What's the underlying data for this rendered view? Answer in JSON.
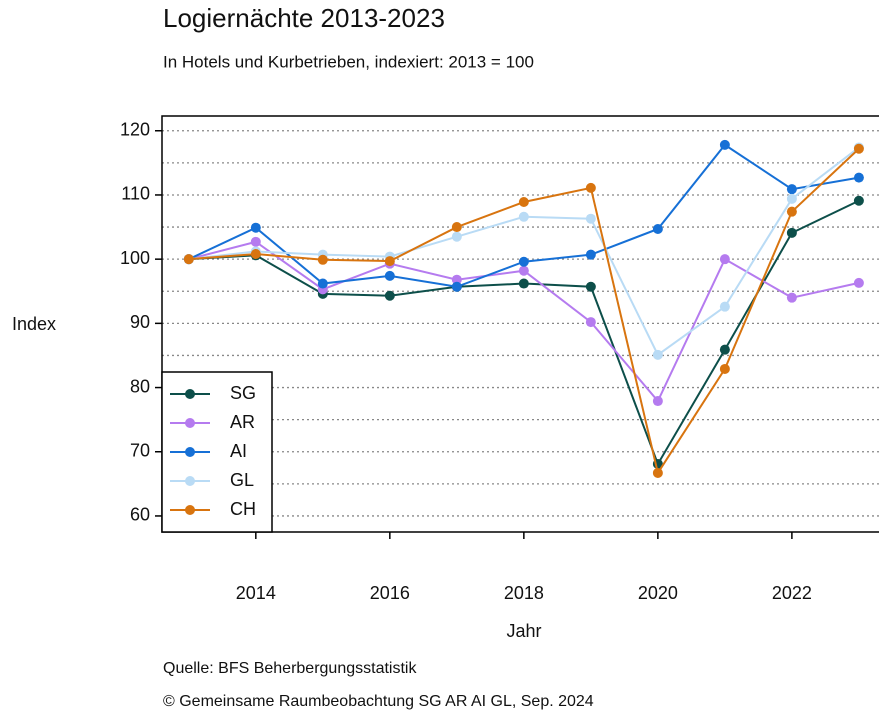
{
  "chart_data": {
    "type": "line",
    "title": "Logiernächte 2013-2023",
    "subtitle": "In Hotels und Kurbetrieben, indexiert:  2013 = 100",
    "x_label": "Jahr",
    "y_label": "Index",
    "x": [
      2013,
      2014,
      2015,
      2016,
      2017,
      2018,
      2019,
      2020,
      2021,
      2022,
      2023
    ],
    "series": [
      {
        "name": "SG",
        "color": "#0d4f4a",
        "values": [
          100,
          100.6,
          94.6,
          94.3,
          95.7,
          96.2,
          95.7,
          68.1,
          85.9,
          104.1,
          109.1
        ]
      },
      {
        "name": "AR",
        "color": "#b57bef",
        "values": [
          100,
          102.7,
          95.3,
          99.3,
          96.8,
          98.2,
          90.2,
          77.9,
          100,
          94.0,
          96.3
        ]
      },
      {
        "name": "AI",
        "color": "#1670d6",
        "values": [
          100,
          104.9,
          96.2,
          97.4,
          95.7,
          99.6,
          100.7,
          104.7,
          117.8,
          110.9,
          112.7
        ]
      },
      {
        "name": "GL",
        "color": "#b9dbf5",
        "values": [
          100,
          101.2,
          100.7,
          100.4,
          103.5,
          106.6,
          106.3,
          85.1,
          92.6,
          109.4,
          117.4
        ]
      },
      {
        "name": "CH",
        "color": "#d8740f",
        "values": [
          100,
          100.8,
          99.9,
          99.7,
          105.0,
          108.9,
          111.1,
          66.7,
          82.9,
          107.4,
          117.2
        ]
      }
    ],
    "xlim": [
      2012.6,
      2023.3
    ],
    "ylim": [
      57.5,
      122.3
    ],
    "xticks": [
      2014,
      2016,
      2018,
      2020,
      2022
    ],
    "yticks": [
      60,
      70,
      80,
      90,
      100,
      110,
      120
    ],
    "grid_lines": [
      60,
      65,
      70,
      75,
      80,
      85,
      90,
      95,
      100,
      105,
      110,
      115,
      120
    ],
    "legend_position": "lower left",
    "source": "Quelle: BFS Beherbergungsstatistik",
    "copyright": "© Gemeinsame Raumbeobachtung SG AR AI GL, Sep. 2024"
  }
}
